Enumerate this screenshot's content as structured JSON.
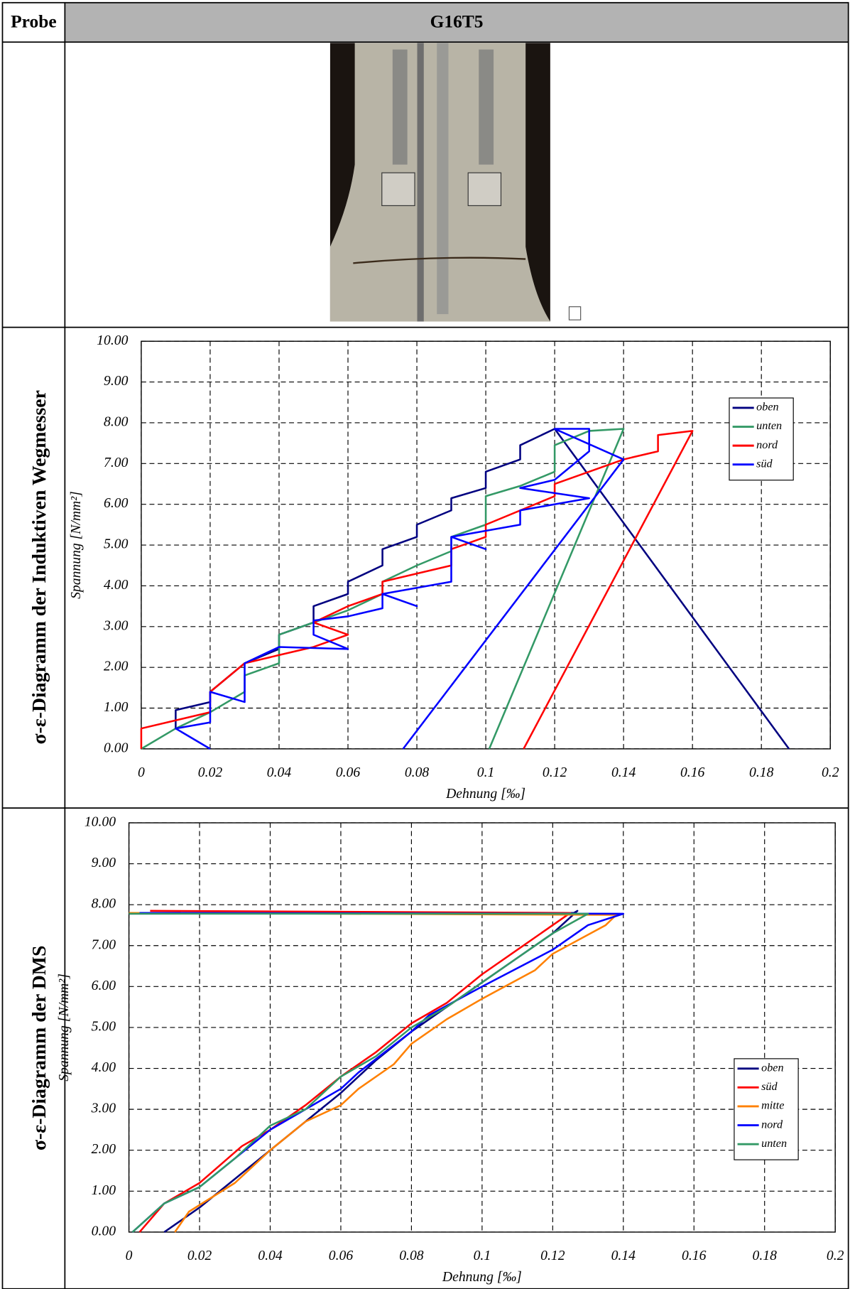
{
  "table": {
    "header": [
      "Probe",
      "G16T5"
    ],
    "row_labels": [
      "σ-ε-Diagramm der Induktiven Wegmesser",
      "σ-ε-Diagramm der DMS"
    ]
  },
  "chart_data": [
    {
      "type": "line",
      "xlabel": "Dehnung [‰]",
      "ylabel": "Spannung [N/mm²]",
      "grid": true,
      "legend": "upper right",
      "xlim": [
        0,
        0.2
      ],
      "xticks": [
        0,
        0.02,
        0.04,
        0.06,
        0.08,
        0.1,
        0.12,
        0.14,
        0.16,
        0.18,
        0.2
      ],
      "ylim": [
        0,
        10
      ],
      "yticks": [
        {
          "value": 0,
          "label": "0.00"
        },
        {
          "value": 1,
          "label": "1.00"
        },
        {
          "value": 2,
          "label": "2.00"
        },
        {
          "value": 3,
          "label": "3.00"
        },
        {
          "value": 4,
          "label": "4.00"
        },
        {
          "value": 5,
          "label": "5.00"
        },
        {
          "value": 6,
          "label": "6.00"
        },
        {
          "value": 7,
          "label": "7.00"
        },
        {
          "value": 8,
          "label": "8.00"
        },
        {
          "value": 9,
          "label": "9.00"
        },
        {
          "value": 10,
          "label": "10.00"
        }
      ],
      "series": [
        {
          "name": "oben",
          "color": "#000080",
          "x": [
            0.01,
            0.01,
            0.02,
            0.02,
            0.03,
            0.04,
            0.04,
            0.05,
            0.05,
            0.06,
            0.06,
            0.07,
            0.07,
            0.08,
            0.08,
            0.09,
            0.09,
            0.1,
            0.1,
            0.11,
            0.11,
            0.12,
            0.188
          ],
          "values": [
            0.5,
            0.95,
            1.15,
            1.4,
            2.1,
            2.45,
            2.8,
            3.1,
            3.5,
            3.8,
            4.1,
            4.5,
            4.9,
            5.2,
            5.5,
            5.85,
            6.15,
            6.4,
            6.8,
            7.1,
            7.45,
            7.85,
            0
          ]
        },
        {
          "name": "unten",
          "color": "#339966",
          "x": [
            0,
            0.01,
            0.02,
            0.03,
            0.03,
            0.04,
            0.04,
            0.05,
            0.06,
            0.07,
            0.07,
            0.08,
            0.09,
            0.09,
            0.1,
            0.1,
            0.11,
            0.12,
            0.12,
            0.13,
            0.14,
            0.101
          ],
          "values": [
            0,
            0.5,
            0.9,
            1.4,
            1.8,
            2.1,
            2.8,
            3.1,
            3.4,
            3.8,
            4.1,
            4.5,
            4.85,
            5.2,
            5.5,
            6.2,
            6.45,
            6.8,
            7.45,
            7.8,
            7.85,
            0
          ]
        },
        {
          "name": "nord",
          "color": "#ff0000",
          "x": [
            0,
            0,
            0.02,
            0.02,
            0.03,
            0.04,
            0.05,
            0.06,
            0.05,
            0.06,
            0.07,
            0.07,
            0.09,
            0.09,
            0.1,
            0.1,
            0.12,
            0.12,
            0.13,
            0.14,
            0.15,
            0.15,
            0.16,
            0.111
          ],
          "values": [
            0,
            0.5,
            0.9,
            1.4,
            2.1,
            2.3,
            2.5,
            2.8,
            3.1,
            3.5,
            3.8,
            4.1,
            4.5,
            4.9,
            5.2,
            5.5,
            6.2,
            6.5,
            6.8,
            7.1,
            7.3,
            7.7,
            7.8,
            0
          ]
        },
        {
          "name": "süd",
          "color": "#0000ff",
          "x": [
            0.02,
            0.01,
            0.02,
            0.02,
            0.03,
            0.03,
            0.04,
            0.06,
            0.05,
            0.05,
            0.06,
            0.07,
            0.07,
            0.08,
            0.07,
            0.09,
            0.09,
            0.1,
            0.09,
            0.11,
            0.11,
            0.13,
            0.11,
            0.12,
            0.13,
            0.13,
            0.12,
            0.14,
            0.076
          ],
          "values": [
            0,
            0.5,
            0.65,
            1.4,
            1.15,
            2.1,
            2.5,
            2.45,
            2.8,
            3.15,
            3.25,
            3.45,
            3.8,
            3.5,
            3.8,
            4.1,
            5.2,
            4.9,
            5.2,
            5.5,
            5.85,
            6.15,
            6.4,
            6.6,
            7.3,
            7.85,
            7.85,
            7.1,
            0
          ]
        }
      ]
    },
    {
      "type": "line",
      "xlabel": "Dehnung [‰]",
      "ylabel": "Spannung [N/mm²]",
      "grid": true,
      "legend": "center right",
      "xlim": [
        0,
        0.2
      ],
      "xticks": [
        0,
        0.02,
        0.04,
        0.06,
        0.08,
        0.1,
        0.12,
        0.14,
        0.16,
        0.18,
        0.2
      ],
      "ylim": [
        0,
        10
      ],
      "yticks": [
        {
          "value": 0,
          "label": "0.00"
        },
        {
          "value": 1,
          "label": "1.00"
        },
        {
          "value": 2,
          "label": "2.00"
        },
        {
          "value": 3,
          "label": "3.00"
        },
        {
          "value": 4,
          "label": "4.00"
        },
        {
          "value": 5,
          "label": "5.00"
        },
        {
          "value": 6,
          "label": "6.00"
        },
        {
          "value": 7,
          "label": "7.00"
        },
        {
          "value": 8,
          "label": "8.00"
        },
        {
          "value": 9,
          "label": "9.00"
        },
        {
          "value": 10,
          "label": "10.00"
        }
      ],
      "series": [
        {
          "name": "oben",
          "color": "#000080",
          "x": [
            0.01,
            0.02,
            0.03,
            0.04,
            0.05,
            0.06,
            0.07,
            0.08,
            0.09,
            0.1,
            0.11,
            0.12,
            0.127,
            0.126,
            0
          ],
          "values": [
            0,
            0.6,
            1.3,
            2.0,
            2.7,
            3.4,
            4.2,
            4.9,
            5.5,
            6.1,
            6.7,
            7.3,
            7.85,
            7.8,
            7.78
          ]
        },
        {
          "name": "süd",
          "color": "#ff0000",
          "x": [
            0.003,
            0.01,
            0.02,
            0.032,
            0.04,
            0.05,
            0.06,
            0.07,
            0.08,
            0.09,
            0.1,
            0.11,
            0.12,
            0.125,
            0.006
          ],
          "values": [
            0,
            0.7,
            1.2,
            2.1,
            2.5,
            3.1,
            3.8,
            4.4,
            5.1,
            5.6,
            6.3,
            6.9,
            7.5,
            7.8,
            7.85
          ]
        },
        {
          "name": "mitte",
          "color": "#ff8000",
          "x": [
            0.013,
            0.017,
            0.03,
            0.04,
            0.05,
            0.06,
            0.065,
            0.075,
            0.08,
            0.09,
            0.1,
            0.115,
            0.12,
            0.135,
            0.138,
            0
          ],
          "values": [
            0,
            0.5,
            1.2,
            2.0,
            2.7,
            3.1,
            3.5,
            4.1,
            4.6,
            5.2,
            5.7,
            6.4,
            6.8,
            7.5,
            7.75,
            7.8
          ]
        },
        {
          "name": "nord",
          "color": "#0000ff",
          "x": [
            0.001,
            0.01,
            0.02,
            0.03,
            0.04,
            0.05,
            0.06,
            0.065,
            0.08,
            0.085,
            0.1,
            0.12,
            0.13,
            0.14,
            0.003
          ],
          "values": [
            0,
            0.7,
            1.1,
            1.8,
            2.5,
            3.0,
            3.5,
            3.9,
            4.9,
            5.3,
            6.0,
            6.9,
            7.5,
            7.78,
            7.8
          ]
        },
        {
          "name": "unten",
          "color": "#339966",
          "x": [
            0.001,
            0.01,
            0.02,
            0.03,
            0.04,
            0.05,
            0.06,
            0.07,
            0.08,
            0.09,
            0.1,
            0.11,
            0.12,
            0.13,
            0
          ],
          "values": [
            0,
            0.7,
            1.1,
            1.8,
            2.6,
            3.0,
            3.8,
            4.3,
            5.0,
            5.5,
            6.1,
            6.7,
            7.3,
            7.78,
            7.78
          ]
        }
      ]
    }
  ]
}
